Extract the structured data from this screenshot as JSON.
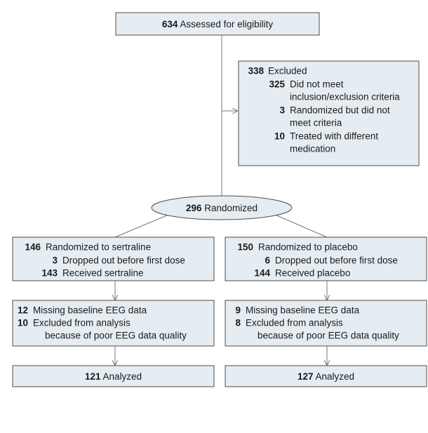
{
  "screening": {
    "number": 634,
    "label": "Assessed for eligibility"
  },
  "excluded": {
    "number": 338,
    "label": "Excluded",
    "reasons": [
      {
        "number": 325,
        "lines": [
          "Did not meet",
          "inclusion/exclusion criteria"
        ]
      },
      {
        "number": 3,
        "lines": [
          "Randomized but did not",
          "meet criteria"
        ]
      },
      {
        "number": 10,
        "lines": [
          "Treated with different",
          "medication"
        ]
      }
    ]
  },
  "randomized": {
    "number": 296,
    "label": "Randomized"
  },
  "arms": [
    {
      "randomized": {
        "number": 146,
        "label": "Randomized to sertraline"
      },
      "dropped": {
        "number": 3,
        "label": "Dropped out before first dose"
      },
      "received": {
        "number": 143,
        "label": "Received sertraline"
      },
      "missing": {
        "number": 12,
        "label": "Missing baseline EEG data"
      },
      "excluded": {
        "number": 10,
        "lines": [
          "Excluded from analysis",
          "because of poor EEG data quality"
        ]
      },
      "analyzed": {
        "number": 121,
        "label": "Analyzed"
      }
    },
    {
      "randomized": {
        "number": 150,
        "label": "Randomized to placebo"
      },
      "dropped": {
        "number": 6,
        "label": "Dropped out before first dose"
      },
      "received": {
        "number": 144,
        "label": "Received placebo"
      },
      "missing": {
        "number": 9,
        "label": "Missing baseline EEG data"
      },
      "excluded": {
        "number": 8,
        "lines": [
          "Excluded from analysis",
          "because of poor EEG data quality"
        ]
      },
      "analyzed": {
        "number": 127,
        "label": "Analyzed"
      }
    }
  ]
}
